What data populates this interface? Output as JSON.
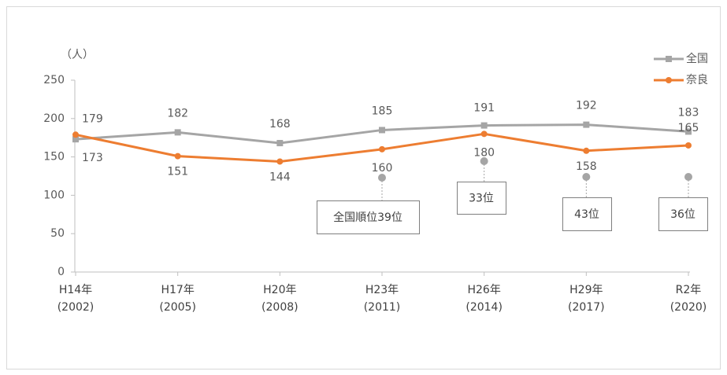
{
  "chart_data": {
    "type": "line",
    "y_label": "（人）",
    "categories": [
      "H14年\n(2002)",
      "H17年\n(2005)",
      "H20年\n(2008)",
      "H23年\n(2011)",
      "H26年\n(2014)",
      "H29年\n(2017)",
      "R2年\n(2020)"
    ],
    "series": [
      {
        "name": "全国",
        "color": "#a5a5a5",
        "marker": "square",
        "values": [
          173,
          182,
          168,
          185,
          191,
          192,
          183
        ]
      },
      {
        "name": "奈良",
        "color": "#ed7d31",
        "marker": "circle",
        "values": [
          179,
          151,
          144,
          160,
          180,
          158,
          165
        ]
      }
    ],
    "ylim": [
      0,
      250
    ],
    "yticks": [
      0,
      50,
      100,
      150,
      200,
      250
    ],
    "grid": false,
    "legend": "top-right",
    "annotations": [
      "全国順位39位",
      "33位",
      "43位",
      "36位"
    ]
  }
}
